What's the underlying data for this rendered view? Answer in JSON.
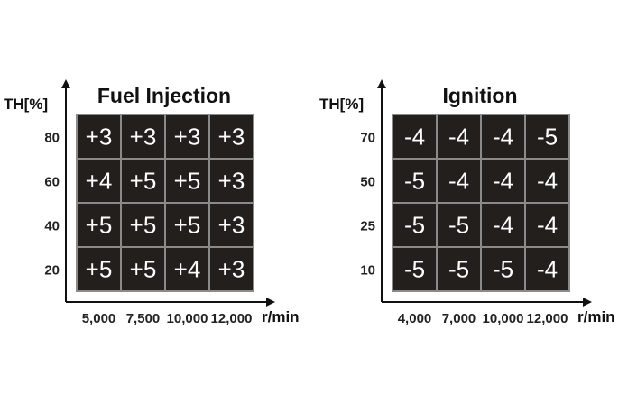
{
  "colors": {
    "cell_fill": "#231f1c",
    "cell_border": "#8a8a8a",
    "cell_text": "#ffffff",
    "axis": "#111111"
  },
  "chart_data": [
    {
      "type": "table",
      "title": "Fuel Injection",
      "ylabel": "TH[%]",
      "xlabel": "r/min",
      "x_ticks": [
        "5,000",
        "7,500",
        "10,000",
        "12,000"
      ],
      "y_ticks": [
        "80",
        "60",
        "40",
        "20"
      ],
      "cells": [
        [
          "+3",
          "+3",
          "+3",
          "+3"
        ],
        [
          "+4",
          "+5",
          "+5",
          "+3"
        ],
        [
          "+5",
          "+5",
          "+5",
          "+3"
        ],
        [
          "+5",
          "+5",
          "+4",
          "+3"
        ]
      ]
    },
    {
      "type": "table",
      "title": "Ignition",
      "ylabel": "TH[%]",
      "xlabel": "r/min",
      "x_ticks": [
        "4,000",
        "7,000",
        "10,000",
        "12,000"
      ],
      "y_ticks": [
        "70",
        "50",
        "25",
        "10"
      ],
      "cells": [
        [
          "-4",
          "-4",
          "-4",
          "-5"
        ],
        [
          "-5",
          "-4",
          "-4",
          "-4"
        ],
        [
          "-5",
          "-5",
          "-4",
          "-4"
        ],
        [
          "-5",
          "-5",
          "-5",
          "-4"
        ]
      ]
    }
  ]
}
